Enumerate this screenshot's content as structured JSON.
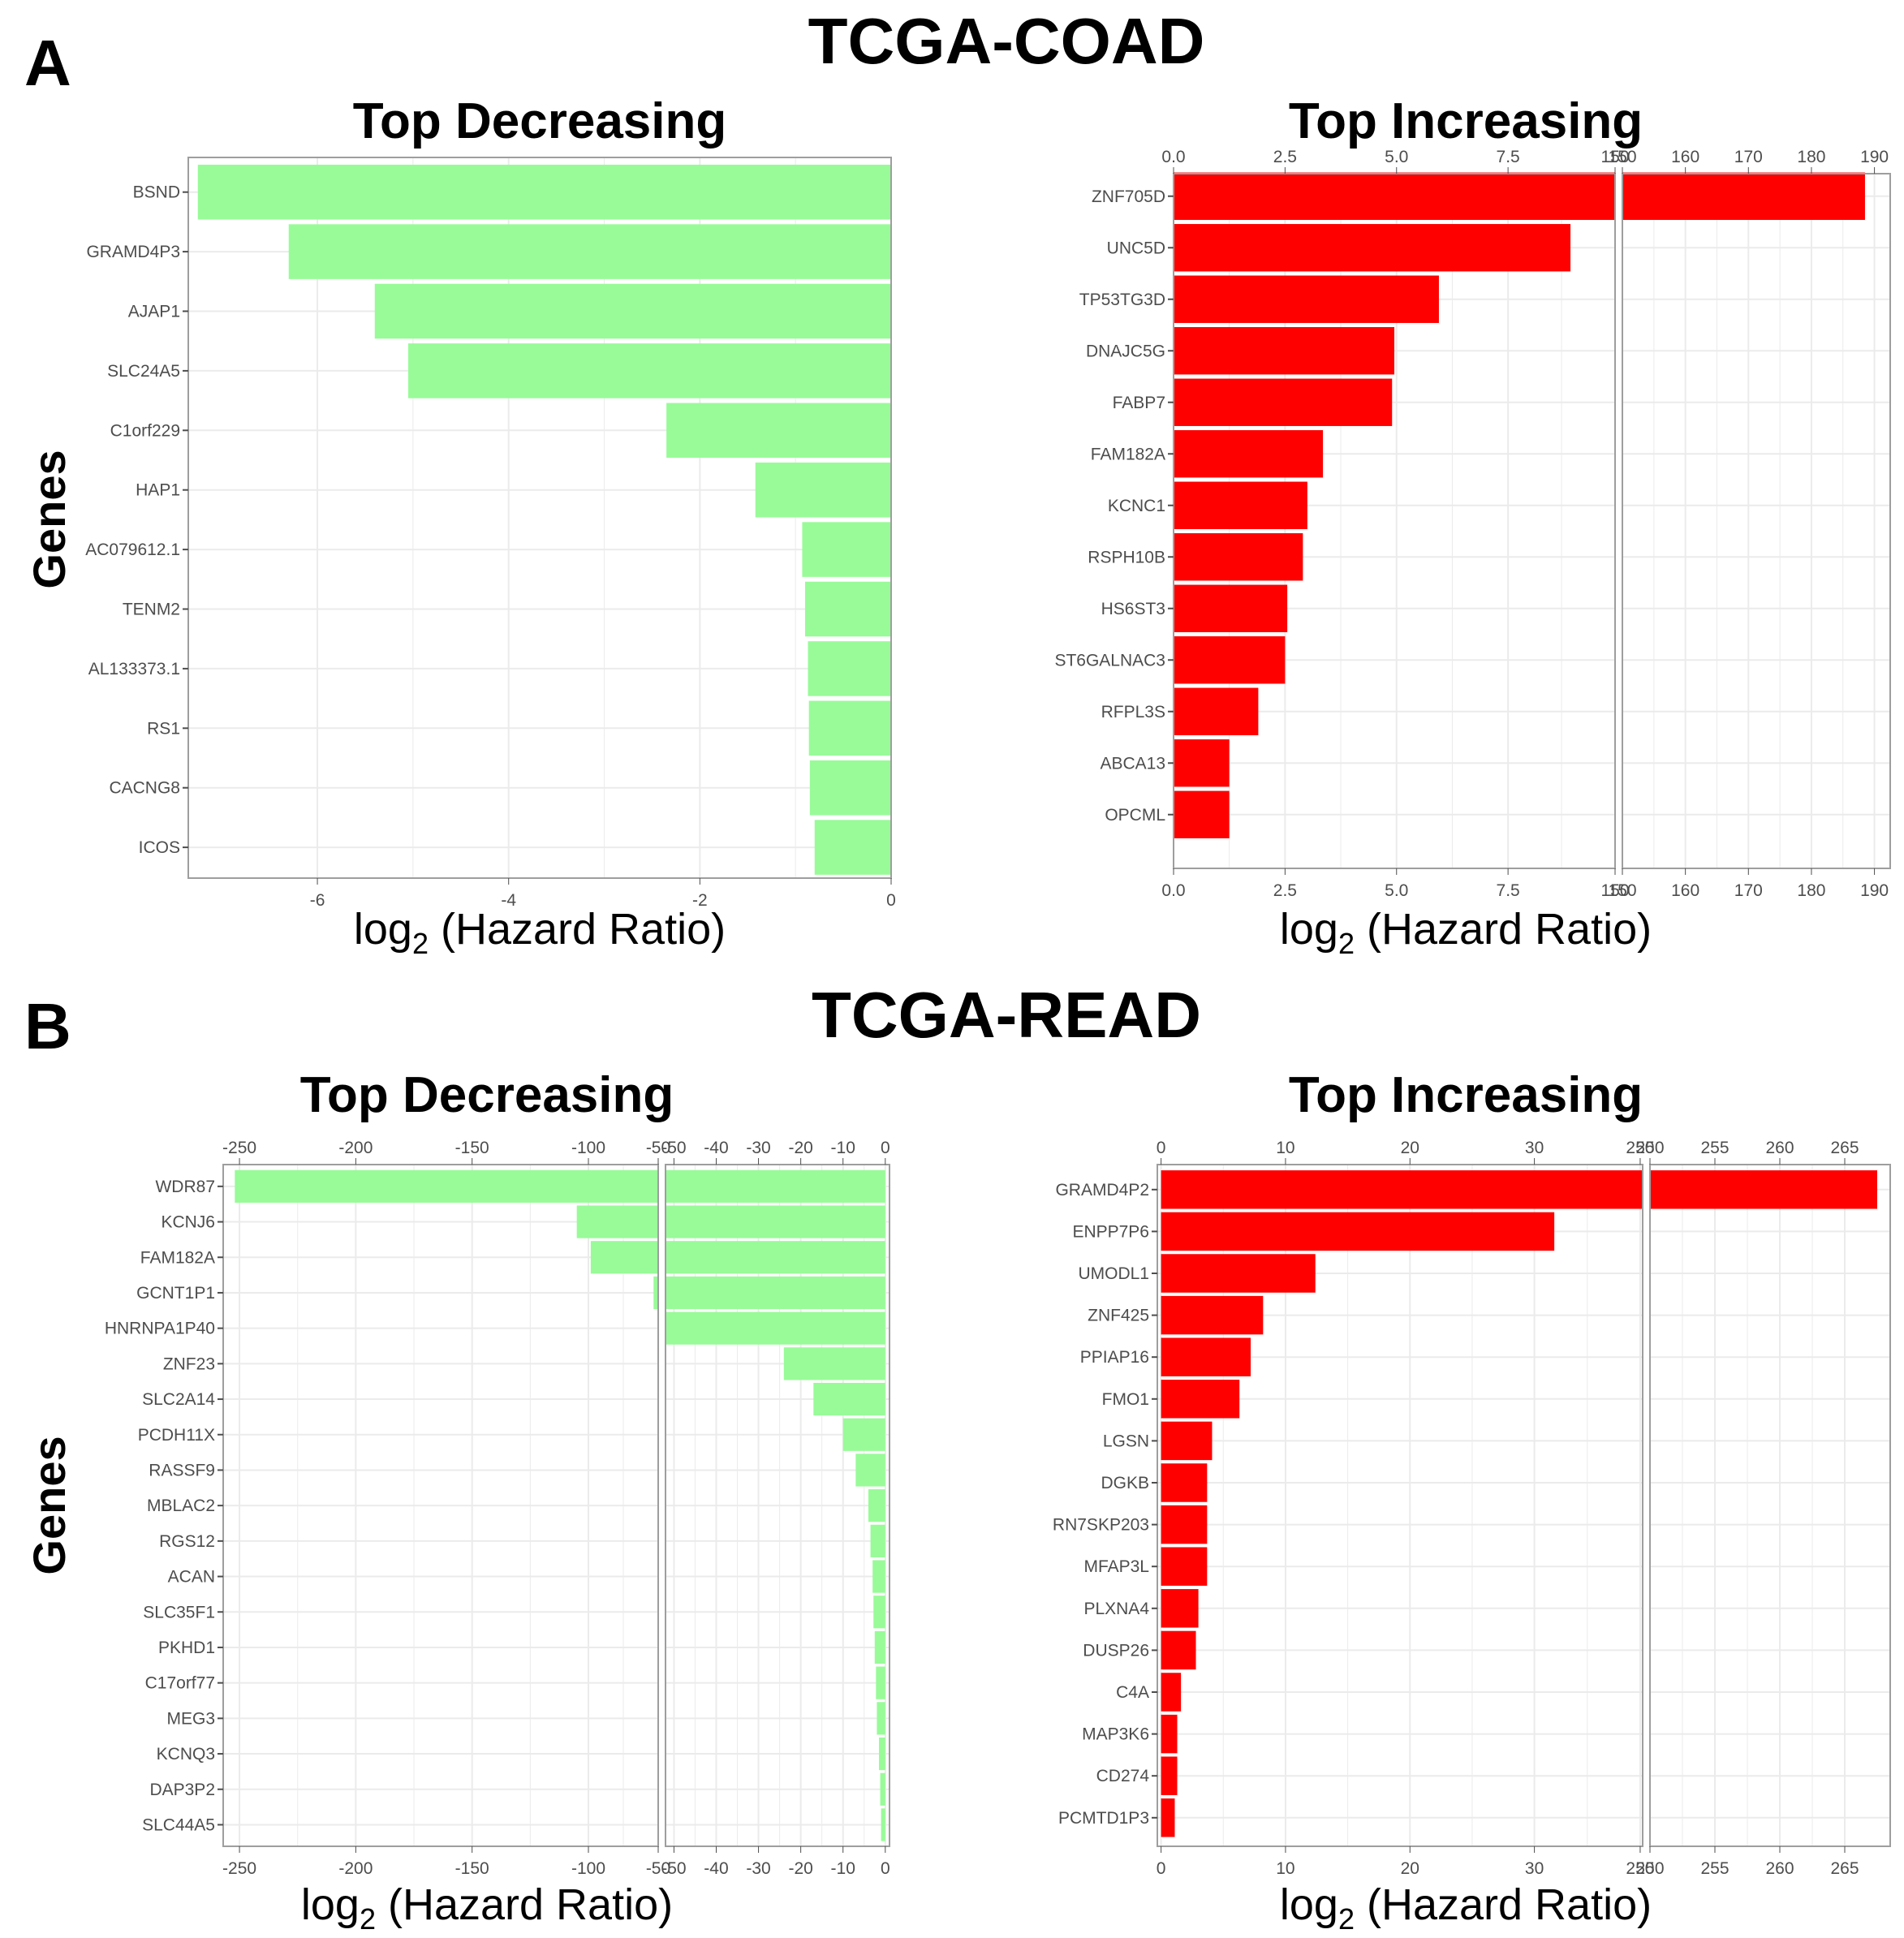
{
  "figure": {
    "panel_a_letter": "A",
    "panel_b_letter": "B",
    "panel_a_title": "TCGA-COAD",
    "panel_b_title": "TCGA-READ",
    "y_axis_label": "Genes",
    "x_axis_label_prefix": "log",
    "x_axis_label_sub": "2",
    "x_axis_label_suffix": " (Hazard Ratio)"
  },
  "colors": {
    "decreasing_bar": "#98FB98",
    "increasing_bar": "#FF0000",
    "grid": "#EBEBEB",
    "panel_border": "#9E9E9E",
    "tick_text": "#4D4D4D"
  },
  "chart_data": [
    {
      "id": "coad_decreasing",
      "type": "bar",
      "orientation": "horizontal",
      "title": "Top Decreasing",
      "categories": [
        "BSND",
        "GRAMD4P3",
        "AJAP1",
        "SLC24A5",
        "C1orf229",
        "HAP1",
        "AC079612.1",
        "TENM2",
        "AL133373.1",
        "RS1",
        "CACNG8",
        "ICOS"
      ],
      "values": [
        -7.25,
        -6.3,
        -5.4,
        -5.05,
        -2.35,
        -1.42,
        -0.93,
        -0.9,
        -0.87,
        -0.86,
        -0.85,
        -0.8
      ],
      "segments": [
        {
          "xlim": [
            -7.35,
            0
          ],
          "ticks": [
            "-6",
            "-4",
            "-2",
            "0"
          ],
          "tick_values": [
            -6,
            -4,
            -2,
            0
          ]
        }
      ],
      "ticks_top": false,
      "xlabel": "log2 (Hazard Ratio)",
      "ylabel": "Genes",
      "grid": true
    },
    {
      "id": "coad_increasing",
      "type": "bar",
      "orientation": "horizontal",
      "title": "Top Increasing",
      "categories": [
        "ZNF705D",
        "UNC5D",
        "TP53TG3D",
        "DNAJC5G",
        "FABP7",
        "FAM182A",
        "KCNC1",
        "RSPH10B",
        "HS6ST3",
        "ST6GALNAC3",
        "RFPL3S",
        "ABCA13",
        "OPCML"
      ],
      "values": [
        188.5,
        8.9,
        5.95,
        4.95,
        4.9,
        3.35,
        3.0,
        2.9,
        2.55,
        2.5,
        1.9,
        1.25,
        1.25
      ],
      "segments": [
        {
          "xlim": [
            0,
            9.9
          ],
          "ticks": [
            "0.0",
            "2.5",
            "5.0",
            "7.5",
            "150"
          ],
          "tick_values": [
            0,
            2.5,
            5.0,
            7.5,
            9.9
          ]
        },
        {
          "xlim": [
            150,
            192.5
          ],
          "ticks": [
            "150",
            "160",
            "170",
            "180",
            "190"
          ],
          "tick_values": [
            150,
            160,
            170,
            180,
            190
          ]
        }
      ],
      "ticks_top": true,
      "xlabel": "log2 (Hazard Ratio)",
      "ylabel": "",
      "grid": true
    },
    {
      "id": "read_decreasing",
      "type": "bar",
      "orientation": "horizontal",
      "title": "Top Decreasing",
      "categories": [
        "WDR87",
        "KCNJ6",
        "FAM182A",
        "GCNT1P1",
        "HNRNPA1P40",
        "ZNF23",
        "SLC2A14",
        "PCDH11X",
        "RASSF9",
        "MBLAC2",
        "RGS12",
        "ACAN",
        "SLC35F1",
        "PKHD1",
        "C17orf77",
        "MEG3",
        "KCNQ3",
        "DAP3P2",
        "SLC44A5"
      ],
      "values": [
        -252,
        -105,
        -99,
        -72,
        -54,
        -24,
        -17,
        -10,
        -7,
        -4,
        -3.5,
        -3,
        -2.8,
        -2.5,
        -2.2,
        -2,
        -1.5,
        -1.2,
        -1
      ],
      "segments": [
        {
          "xlim": [
            -257,
            -70
          ],
          "ticks": [
            "-250",
            "-200",
            "-150",
            "-100",
            "-50"
          ],
          "tick_values": [
            -250,
            -200,
            -150,
            -100,
            -70
          ]
        },
        {
          "xlim": [
            -52,
            1
          ],
          "ticks": [
            "-50",
            "-40",
            "-30",
            "-20",
            "-10",
            "0"
          ],
          "tick_values": [
            -50,
            -40,
            -30,
            -20,
            -10,
            0
          ]
        }
      ],
      "ticks_top": true,
      "xlabel": "log2 (Hazard Ratio)",
      "ylabel": "Genes",
      "grid": true
    },
    {
      "id": "read_increasing",
      "type": "bar",
      "orientation": "horizontal",
      "title": "Top Increasing",
      "categories": [
        "GRAMD4P2",
        "ENPP7P6",
        "UMODL1",
        "ZNF425",
        "PPIAP16",
        "FMO1",
        "LGSN",
        "DGKB",
        "RN7SKP203",
        "MFAP3L",
        "PLXNA4",
        "DUSP26",
        "C4A",
        "MAP3K6",
        "CD274",
        "PCMTD1P3"
      ],
      "values": [
        267.5,
        31.6,
        12.4,
        8.2,
        7.2,
        6.3,
        4.1,
        3.7,
        3.7,
        3.7,
        3.0,
        2.8,
        1.6,
        1.3,
        1.3,
        1.1
      ],
      "segments": [
        {
          "xlim": [
            -0.3,
            38.7
          ],
          "ticks": [
            "0",
            "10",
            "20",
            "30",
            "250"
          ],
          "tick_values": [
            0,
            10,
            20,
            30,
            38.5
          ]
        },
        {
          "xlim": [
            250,
            268.5
          ],
          "ticks": [
            "250",
            "255",
            "260",
            "265"
          ],
          "tick_values": [
            250,
            255,
            260,
            265
          ]
        }
      ],
      "ticks_top": true,
      "xlabel": "log2 (Hazard Ratio)",
      "ylabel": "",
      "grid": true
    }
  ]
}
